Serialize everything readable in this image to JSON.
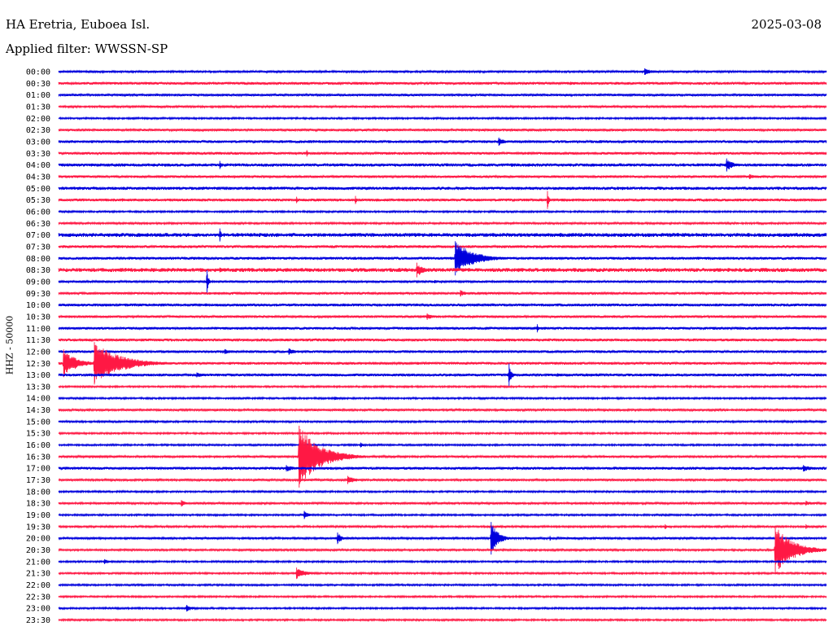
{
  "header": {
    "station": "HA Eretria, Euboea Isl.",
    "date": "2025-03-08",
    "filter": "Applied filter: WWSSN-SP"
  },
  "channel_label": "HHZ - 50000",
  "colors": {
    "even_trace": "#0000dd",
    "odd_trace": "#ff1844"
  },
  "chart_data": {
    "type": "line",
    "subtype": "helicorder",
    "row_interval_minutes": 30,
    "minutes_per_row": 30,
    "row_labels": [
      "00:00",
      "00:30",
      "01:00",
      "01:30",
      "02:00",
      "02:30",
      "03:00",
      "03:30",
      "04:00",
      "04:30",
      "05:00",
      "05:30",
      "06:00",
      "06:30",
      "07:00",
      "07:30",
      "08:00",
      "08:30",
      "09:00",
      "09:30",
      "10:00",
      "10:30",
      "11:00",
      "11:30",
      "12:00",
      "12:30",
      "13:00",
      "13:30",
      "14:00",
      "14:30",
      "15:00",
      "15:30",
      "16:00",
      "16:30",
      "17:00",
      "17:30",
      "18:00",
      "18:30",
      "19:00",
      "19:30",
      "20:00",
      "20:30",
      "21:00",
      "21:30",
      "22:00",
      "22:30",
      "23:00",
      "23:30"
    ],
    "background_noise": [
      1.2,
      1.5,
      1.3,
      1.2,
      1.0,
      1.3,
      1.6,
      1.5,
      1.8,
      1.4,
      1.8,
      1.6,
      1.0,
      1.1,
      2.2,
      1.6,
      1.6,
      2.2,
      1.4,
      1.4,
      1.6,
      1.4,
      1.5,
      1.6,
      1.5,
      1.5,
      1.6,
      1.0,
      1.0,
      1.2,
      1.1,
      1.0,
      1.0,
      1.2,
      1.6,
      1.2,
      1.0,
      1.2,
      1.0,
      1.1,
      1.2,
      1.1,
      1.0,
      1.0,
      1.0,
      1.0,
      1.0,
      1.0
    ],
    "events": [
      {
        "row": 0,
        "minute": 22.9,
        "amplitude": 4,
        "duration": 1.2
      },
      {
        "row": 1,
        "minute": 20.0,
        "amplitude": 2,
        "duration": 1.8
      },
      {
        "row": 1,
        "minute": 28.4,
        "amplitude": 1.5,
        "duration": 0.8
      },
      {
        "row": 4,
        "minute": 2.9,
        "amplitude": 1.5,
        "duration": 0.4
      },
      {
        "row": 6,
        "minute": 17.2,
        "amplitude": 5,
        "duration": 0.8
      },
      {
        "row": 7,
        "minute": 9.7,
        "amplitude": 4,
        "duration": 0.2
      },
      {
        "row": 8,
        "minute": 6.3,
        "amplitude": 5,
        "duration": 0.3
      },
      {
        "row": 8,
        "minute": 17.7,
        "amplitude": 2,
        "duration": 0.9
      },
      {
        "row": 8,
        "minute": 26.1,
        "amplitude": 8,
        "duration": 0.9
      },
      {
        "row": 9,
        "minute": 27.0,
        "amplitude": 3,
        "duration": 1.3
      },
      {
        "row": 11,
        "minute": 2.5,
        "amplitude": 2,
        "duration": 0.9
      },
      {
        "row": 11,
        "minute": 9.3,
        "amplitude": 4,
        "duration": 0.2
      },
      {
        "row": 11,
        "minute": 11.6,
        "amplitude": 5,
        "duration": 0.2
      },
      {
        "row": 11,
        "minute": 19.1,
        "amplitude": 11,
        "duration": 0.2
      },
      {
        "row": 14,
        "minute": 6.3,
        "amplitude": 8,
        "duration": 0.2
      },
      {
        "row": 15,
        "minute": 12.9,
        "amplitude": 2,
        "duration": 0.8
      },
      {
        "row": 16,
        "minute": 15.5,
        "amplitude": 21,
        "duration": 2.3
      },
      {
        "row": 17,
        "minute": 14.0,
        "amplitude": 9,
        "duration": 0.8
      },
      {
        "row": 17,
        "minute": 6.3,
        "amplitude": 3,
        "duration": 1.3
      },
      {
        "row": 18,
        "minute": 5.8,
        "amplitude": 14,
        "duration": 0.2
      },
      {
        "row": 18,
        "minute": 14.7,
        "amplitude": 2,
        "duration": 0.9
      },
      {
        "row": 19,
        "minute": 15.7,
        "amplitude": 4,
        "duration": 0.8
      },
      {
        "row": 21,
        "minute": 14.4,
        "amplitude": 4,
        "duration": 0.8
      },
      {
        "row": 22,
        "minute": 18.7,
        "amplitude": 5,
        "duration": 0.2
      },
      {
        "row": 24,
        "minute": 6.5,
        "amplitude": 3,
        "duration": 0.9
      },
      {
        "row": 24,
        "minute": 9.0,
        "amplitude": 4,
        "duration": 1.0
      },
      {
        "row": 25,
        "minute": 0.2,
        "amplitude": 17,
        "duration": 1.6
      },
      {
        "row": 25,
        "minute": 1.4,
        "amplitude": 26,
        "duration": 3.2
      },
      {
        "row": 26,
        "minute": 5.4,
        "amplitude": 3,
        "duration": 1.3
      },
      {
        "row": 26,
        "minute": 17.6,
        "amplitude": 14,
        "duration": 0.3
      },
      {
        "row": 26,
        "minute": 19.5,
        "amplitude": 2,
        "duration": 0.9
      },
      {
        "row": 28,
        "minute": 10.8,
        "amplitude": 2,
        "duration": 0.8
      },
      {
        "row": 32,
        "minute": 11.8,
        "amplitude": 3,
        "duration": 0.5
      },
      {
        "row": 33,
        "minute": 9.4,
        "amplitude": 38,
        "duration": 2.6
      },
      {
        "row": 34,
        "minute": 8.9,
        "amplitude": 4,
        "duration": 1.3
      },
      {
        "row": 34,
        "minute": 29.1,
        "amplitude": 4,
        "duration": 1.2
      },
      {
        "row": 35,
        "minute": 11.3,
        "amplitude": 5,
        "duration": 1.1
      },
      {
        "row": 37,
        "minute": 4.8,
        "amplitude": 4,
        "duration": 0.6
      },
      {
        "row": 37,
        "minute": 29.2,
        "amplitude": 3,
        "duration": 1.0
      },
      {
        "row": 38,
        "minute": 9.6,
        "amplitude": 5,
        "duration": 0.6
      },
      {
        "row": 39,
        "minute": 23.7,
        "amplitude": 3,
        "duration": 0.4
      },
      {
        "row": 39,
        "minute": 29.2,
        "amplitude": 3,
        "duration": 0.3
      },
      {
        "row": 40,
        "minute": 10.9,
        "amplitude": 7,
        "duration": 0.6
      },
      {
        "row": 40,
        "minute": 16.9,
        "amplitude": 20,
        "duration": 0.9
      },
      {
        "row": 40,
        "minute": 19.2,
        "amplitude": 3,
        "duration": 0.3
      },
      {
        "row": 41,
        "minute": 28.0,
        "amplitude": 30,
        "duration": 2.2
      },
      {
        "row": 42,
        "minute": 1.8,
        "amplitude": 3,
        "duration": 0.8
      },
      {
        "row": 43,
        "minute": 9.3,
        "amplitude": 7,
        "duration": 1.2
      },
      {
        "row": 46,
        "minute": 5.0,
        "amplitude": 4,
        "duration": 0.9
      }
    ],
    "title": "HA Eretria, Euboea Isl.",
    "ylabel": "HHZ - 50000"
  }
}
